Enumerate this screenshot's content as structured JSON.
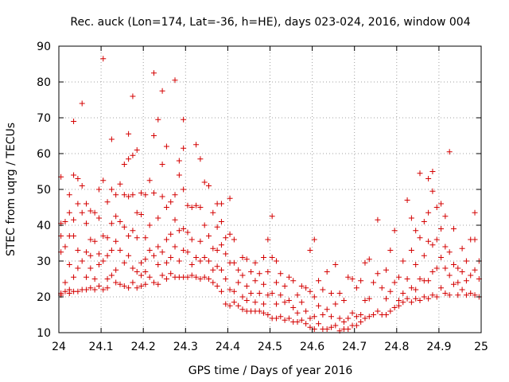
{
  "chart_data": {
    "type": "scatter",
    "title": "Rec. auck (Lon=174, Lat=-36, h=HE), days 023-024, 2016, window 004",
    "xlabel": "GPS time / Days of year 2016",
    "ylabel": "STEC from uqrg / TECUs",
    "xlim": [
      24,
      25
    ],
    "ylim": [
      10,
      90
    ],
    "x_ticks": [
      "24",
      "24.1",
      "24.2",
      "24.3",
      "24.4",
      "24.5",
      "24.6",
      "24.7",
      "24.8",
      "24.9",
      "25"
    ],
    "y_ticks": [
      "10",
      "20",
      "30",
      "40",
      "50",
      "60",
      "70",
      "80",
      "90"
    ],
    "grid": true,
    "marker": "plus",
    "color": "#d40000",
    "points": [
      [
        24.005,
        53.5
      ],
      [
        24.005,
        40.5
      ],
      [
        24.005,
        37
      ],
      [
        24.005,
        32.5
      ],
      [
        24.005,
        21
      ],
      [
        24.005,
        20.5
      ],
      [
        24.015,
        41
      ],
      [
        24.015,
        34
      ],
      [
        24.015,
        24
      ],
      [
        24.015,
        21.5
      ],
      [
        24.025,
        48.5
      ],
      [
        24.025,
        43.5
      ],
      [
        24.025,
        37
      ],
      [
        24.025,
        29
      ],
      [
        24.025,
        22
      ],
      [
        24.025,
        21
      ],
      [
        24.035,
        69
      ],
      [
        24.035,
        54
      ],
      [
        24.035,
        41.5
      ],
      [
        24.035,
        37
      ],
      [
        24.035,
        25.5
      ],
      [
        24.035,
        21.5
      ],
      [
        24.045,
        53
      ],
      [
        24.045,
        46
      ],
      [
        24.045,
        33
      ],
      [
        24.045,
        28
      ],
      [
        24.045,
        21.5
      ],
      [
        24.055,
        74
      ],
      [
        24.055,
        51
      ],
      [
        24.055,
        43.5
      ],
      [
        24.055,
        30
      ],
      [
        24.055,
        22
      ],
      [
        24.065,
        46
      ],
      [
        24.065,
        40.5
      ],
      [
        24.065,
        32.5
      ],
      [
        24.065,
        25.5
      ],
      [
        24.065,
        22
      ],
      [
        24.075,
        44
      ],
      [
        24.075,
        36
      ],
      [
        24.075,
        31.5
      ],
      [
        24.075,
        28
      ],
      [
        24.075,
        22.5
      ],
      [
        24.085,
        43.5
      ],
      [
        24.085,
        35.5
      ],
      [
        24.085,
        25
      ],
      [
        24.085,
        22
      ],
      [
        24.095,
        50
      ],
      [
        24.095,
        42
      ],
      [
        24.095,
        32
      ],
      [
        24.095,
        29
      ],
      [
        24.095,
        23
      ],
      [
        24.105,
        86.5
      ],
      [
        24.105,
        52.5
      ],
      [
        24.105,
        37
      ],
      [
        24.105,
        30
      ],
      [
        24.105,
        22
      ],
      [
        24.115,
        46.5
      ],
      [
        24.115,
        36.5
      ],
      [
        24.115,
        31.5
      ],
      [
        24.115,
        25
      ],
      [
        24.115,
        22.5
      ],
      [
        24.125,
        64
      ],
      [
        24.125,
        50
      ],
      [
        24.125,
        40.5
      ],
      [
        24.125,
        33
      ],
      [
        24.125,
        26
      ],
      [
        24.135,
        48.5
      ],
      [
        24.135,
        42.5
      ],
      [
        24.135,
        35.5
      ],
      [
        24.135,
        27.5
      ],
      [
        24.135,
        24
      ],
      [
        24.145,
        51.5
      ],
      [
        24.145,
        41
      ],
      [
        24.145,
        33
      ],
      [
        24.145,
        23.5
      ],
      [
        24.155,
        57
      ],
      [
        24.155,
        48.5
      ],
      [
        24.155,
        39.5
      ],
      [
        24.155,
        29.5
      ],
      [
        24.155,
        23
      ],
      [
        24.165,
        65.5
      ],
      [
        24.165,
        58.5
      ],
      [
        24.165,
        48
      ],
      [
        24.165,
        37
      ],
      [
        24.165,
        31.5
      ],
      [
        24.165,
        22.5
      ],
      [
        24.175,
        76
      ],
      [
        24.175,
        59.5
      ],
      [
        24.175,
        48.5
      ],
      [
        24.175,
        38.5
      ],
      [
        24.175,
        28
      ],
      [
        24.175,
        24
      ],
      [
        24.185,
        61
      ],
      [
        24.185,
        43.5
      ],
      [
        24.185,
        36.5
      ],
      [
        24.185,
        27
      ],
      [
        24.185,
        22.5
      ],
      [
        24.195,
        49
      ],
      [
        24.195,
        43
      ],
      [
        24.195,
        29.5
      ],
      [
        24.195,
        26
      ],
      [
        24.195,
        23
      ],
      [
        24.205,
        48.5
      ],
      [
        24.205,
        36.5
      ],
      [
        24.205,
        30.5
      ],
      [
        24.205,
        27
      ],
      [
        24.205,
        23.5
      ],
      [
        24.215,
        52.5
      ],
      [
        24.215,
        40
      ],
      [
        24.215,
        33
      ],
      [
        24.215,
        25.5
      ],
      [
        24.225,
        82.5
      ],
      [
        24.225,
        65
      ],
      [
        24.225,
        49
      ],
      [
        24.225,
        31.5
      ],
      [
        24.225,
        24
      ],
      [
        24.235,
        69.5
      ],
      [
        24.235,
        42
      ],
      [
        24.235,
        34
      ],
      [
        24.235,
        29
      ],
      [
        24.235,
        23.5
      ],
      [
        24.245,
        77.5
      ],
      [
        24.245,
        57
      ],
      [
        24.245,
        48
      ],
      [
        24.245,
        32.5
      ],
      [
        24.245,
        26
      ],
      [
        24.255,
        62
      ],
      [
        24.255,
        45
      ],
      [
        24.255,
        36
      ],
      [
        24.255,
        29.5
      ],
      [
        24.255,
        25
      ],
      [
        24.265,
        46.5
      ],
      [
        24.265,
        37.5
      ],
      [
        24.265,
        31
      ],
      [
        24.265,
        26.5
      ],
      [
        24.275,
        80.5
      ],
      [
        24.275,
        48.5
      ],
      [
        24.275,
        41.5
      ],
      [
        24.275,
        34
      ],
      [
        24.275,
        25.5
      ],
      [
        24.285,
        58
      ],
      [
        24.285,
        54
      ],
      [
        24.285,
        38.5
      ],
      [
        24.285,
        30
      ],
      [
        24.285,
        25.5
      ],
      [
        24.295,
        69.5
      ],
      [
        24.295,
        61.5
      ],
      [
        24.295,
        50
      ],
      [
        24.295,
        39
      ],
      [
        24.295,
        33
      ],
      [
        24.295,
        25.5
      ],
      [
        24.305,
        45.5
      ],
      [
        24.305,
        38
      ],
      [
        24.305,
        32.5
      ],
      [
        24.305,
        25.5
      ],
      [
        24.315,
        45
      ],
      [
        24.315,
        36
      ],
      [
        24.315,
        29
      ],
      [
        24.315,
        26
      ],
      [
        24.325,
        62.5
      ],
      [
        24.325,
        45.5
      ],
      [
        24.325,
        31
      ],
      [
        24.325,
        25.5
      ],
      [
        24.335,
        58.5
      ],
      [
        24.335,
        45
      ],
      [
        24.335,
        35.5
      ],
      [
        24.335,
        30
      ],
      [
        24.335,
        25
      ],
      [
        24.345,
        52
      ],
      [
        24.345,
        40
      ],
      [
        24.345,
        31
      ],
      [
        24.345,
        25.5
      ],
      [
        24.355,
        51
      ],
      [
        24.355,
        37
      ],
      [
        24.355,
        30
      ],
      [
        24.355,
        25
      ],
      [
        24.365,
        43.5
      ],
      [
        24.365,
        33.5
      ],
      [
        24.365,
        27.5
      ],
      [
        24.365,
        24
      ],
      [
        24.375,
        46
      ],
      [
        24.375,
        39.5
      ],
      [
        24.375,
        33
      ],
      [
        24.375,
        28.5
      ],
      [
        24.375,
        23
      ],
      [
        24.385,
        46
      ],
      [
        24.385,
        41
      ],
      [
        24.385,
        34.5
      ],
      [
        24.385,
        27.5
      ],
      [
        24.385,
        21.5
      ],
      [
        24.395,
        36.5
      ],
      [
        24.395,
        32
      ],
      [
        24.395,
        25
      ],
      [
        24.395,
        18
      ],
      [
        24.405,
        47.5
      ],
      [
        24.405,
        37.5
      ],
      [
        24.405,
        29.5
      ],
      [
        24.405,
        22
      ],
      [
        24.405,
        17.5
      ],
      [
        24.415,
        36
      ],
      [
        24.415,
        29.5
      ],
      [
        24.415,
        21.5
      ],
      [
        24.415,
        18.5
      ],
      [
        24.425,
        27.5
      ],
      [
        24.425,
        24
      ],
      [
        24.425,
        17.5
      ],
      [
        24.435,
        31
      ],
      [
        24.435,
        26
      ],
      [
        24.435,
        20
      ],
      [
        24.435,
        16.5
      ],
      [
        24.445,
        30.5
      ],
      [
        24.445,
        23
      ],
      [
        24.445,
        19
      ],
      [
        24.445,
        16
      ],
      [
        24.455,
        27
      ],
      [
        24.455,
        21
      ],
      [
        24.455,
        16
      ],
      [
        24.465,
        29.5
      ],
      [
        24.465,
        24.5
      ],
      [
        24.465,
        18.5
      ],
      [
        24.465,
        16
      ],
      [
        24.475,
        26.5
      ],
      [
        24.475,
        21
      ],
      [
        24.475,
        16
      ],
      [
        24.485,
        31
      ],
      [
        24.485,
        23.5
      ],
      [
        24.485,
        18
      ],
      [
        24.485,
        15.5
      ],
      [
        24.495,
        36
      ],
      [
        24.495,
        27
      ],
      [
        24.495,
        20.5
      ],
      [
        24.495,
        15
      ],
      [
        24.505,
        42.5
      ],
      [
        24.505,
        31
      ],
      [
        24.505,
        21
      ],
      [
        24.505,
        14
      ],
      [
        24.515,
        30
      ],
      [
        24.515,
        24
      ],
      [
        24.515,
        18
      ],
      [
        24.515,
        14
      ],
      [
        24.525,
        26.5
      ],
      [
        24.525,
        20.5
      ],
      [
        24.525,
        14.5
      ],
      [
        24.535,
        23
      ],
      [
        24.535,
        18.5
      ],
      [
        24.535,
        13.5
      ],
      [
        24.545,
        25.5
      ],
      [
        24.545,
        19
      ],
      [
        24.545,
        14
      ],
      [
        24.555,
        24.5
      ],
      [
        24.555,
        17
      ],
      [
        24.555,
        13
      ],
      [
        24.565,
        20.5
      ],
      [
        24.565,
        15.5
      ],
      [
        24.565,
        13
      ],
      [
        24.575,
        23
      ],
      [
        24.575,
        18.5
      ],
      [
        24.575,
        13.5
      ],
      [
        24.585,
        22.5
      ],
      [
        24.585,
        16
      ],
      [
        24.585,
        12.5
      ],
      [
        24.595,
        33
      ],
      [
        24.595,
        21.5
      ],
      [
        24.595,
        14
      ],
      [
        24.595,
        11.5
      ],
      [
        24.605,
        36
      ],
      [
        24.605,
        20
      ],
      [
        24.605,
        14.5
      ],
      [
        24.605,
        11
      ],
      [
        24.615,
        24.5
      ],
      [
        24.615,
        17.5
      ],
      [
        24.615,
        12.5
      ],
      [
        24.625,
        22
      ],
      [
        24.625,
        15
      ],
      [
        24.625,
        11
      ],
      [
        24.635,
        27
      ],
      [
        24.635,
        16.5
      ],
      [
        24.635,
        11
      ],
      [
        24.645,
        21
      ],
      [
        24.645,
        14.5
      ],
      [
        24.645,
        11.5
      ],
      [
        24.655,
        29
      ],
      [
        24.655,
        18
      ],
      [
        24.655,
        12
      ],
      [
        24.665,
        21
      ],
      [
        24.665,
        14
      ],
      [
        24.665,
        10.5
      ],
      [
        24.675,
        19
      ],
      [
        24.675,
        13
      ],
      [
        24.675,
        11
      ],
      [
        24.685,
        25.5
      ],
      [
        24.685,
        14
      ],
      [
        24.685,
        11
      ],
      [
        24.695,
        25
      ],
      [
        24.695,
        15.5
      ],
      [
        24.695,
        12
      ],
      [
        24.705,
        22.5
      ],
      [
        24.705,
        14.5
      ],
      [
        24.705,
        12
      ],
      [
        24.715,
        24.5
      ],
      [
        24.715,
        15
      ],
      [
        24.715,
        13
      ],
      [
        24.725,
        29.5
      ],
      [
        24.725,
        19
      ],
      [
        24.725,
        14
      ],
      [
        24.735,
        30.5
      ],
      [
        24.735,
        19.5
      ],
      [
        24.735,
        14.5
      ],
      [
        24.745,
        24
      ],
      [
        24.745,
        15
      ],
      [
        24.755,
        41.5
      ],
      [
        24.755,
        26.5
      ],
      [
        24.755,
        16
      ],
      [
        24.765,
        22.5
      ],
      [
        24.765,
        15
      ],
      [
        24.775,
        27.5
      ],
      [
        24.775,
        19.5
      ],
      [
        24.775,
        15
      ],
      [
        24.785,
        33
      ],
      [
        24.785,
        21.5
      ],
      [
        24.785,
        16
      ],
      [
        24.795,
        38.5
      ],
      [
        24.795,
        24
      ],
      [
        24.795,
        17
      ],
      [
        24.805,
        25.5
      ],
      [
        24.805,
        19
      ],
      [
        24.805,
        17.5
      ],
      [
        24.815,
        30
      ],
      [
        24.815,
        21
      ],
      [
        24.815,
        18.5
      ],
      [
        24.825,
        47
      ],
      [
        24.825,
        25
      ],
      [
        24.825,
        19.5
      ],
      [
        24.835,
        42
      ],
      [
        24.835,
        33
      ],
      [
        24.835,
        22.5
      ],
      [
        24.835,
        18.5
      ],
      [
        24.845,
        38.5
      ],
      [
        24.845,
        29
      ],
      [
        24.845,
        22
      ],
      [
        24.845,
        19.5
      ],
      [
        24.855,
        54.5
      ],
      [
        24.855,
        36.5
      ],
      [
        24.855,
        25
      ],
      [
        24.855,
        19
      ],
      [
        24.865,
        41
      ],
      [
        24.865,
        31.5
      ],
      [
        24.865,
        24.5
      ],
      [
        24.865,
        20
      ],
      [
        24.875,
        53
      ],
      [
        24.875,
        43.5
      ],
      [
        24.875,
        35.5
      ],
      [
        24.875,
        24.5
      ],
      [
        24.875,
        19.5
      ],
      [
        24.885,
        55
      ],
      [
        24.885,
        49.5
      ],
      [
        24.885,
        34.5
      ],
      [
        24.885,
        27
      ],
      [
        24.885,
        20.5
      ],
      [
        24.895,
        45
      ],
      [
        24.895,
        36
      ],
      [
        24.895,
        28
      ],
      [
        24.895,
        20
      ],
      [
        24.905,
        46
      ],
      [
        24.905,
        39
      ],
      [
        24.905,
        31
      ],
      [
        24.905,
        22.5
      ],
      [
        24.915,
        42.5
      ],
      [
        24.915,
        34
      ],
      [
        24.915,
        28
      ],
      [
        24.915,
        21
      ],
      [
        24.925,
        60.5
      ],
      [
        24.925,
        32.5
      ],
      [
        24.925,
        26
      ],
      [
        24.925,
        20.5
      ],
      [
        24.935,
        39
      ],
      [
        24.935,
        29
      ],
      [
        24.935,
        23.5
      ],
      [
        24.945,
        28
      ],
      [
        24.945,
        24
      ],
      [
        24.945,
        20.5
      ],
      [
        24.955,
        33.5
      ],
      [
        24.955,
        27
      ],
      [
        24.955,
        22
      ],
      [
        24.965,
        30
      ],
      [
        24.965,
        24.5
      ],
      [
        24.965,
        20.5
      ],
      [
        24.975,
        36
      ],
      [
        24.975,
        26
      ],
      [
        24.975,
        21
      ],
      [
        24.985,
        43.5
      ],
      [
        24.985,
        36
      ],
      [
        24.985,
        27.5
      ],
      [
        24.985,
        20.5
      ],
      [
        24.995,
        30
      ],
      [
        24.995,
        25
      ],
      [
        24.995,
        20
      ]
    ]
  }
}
